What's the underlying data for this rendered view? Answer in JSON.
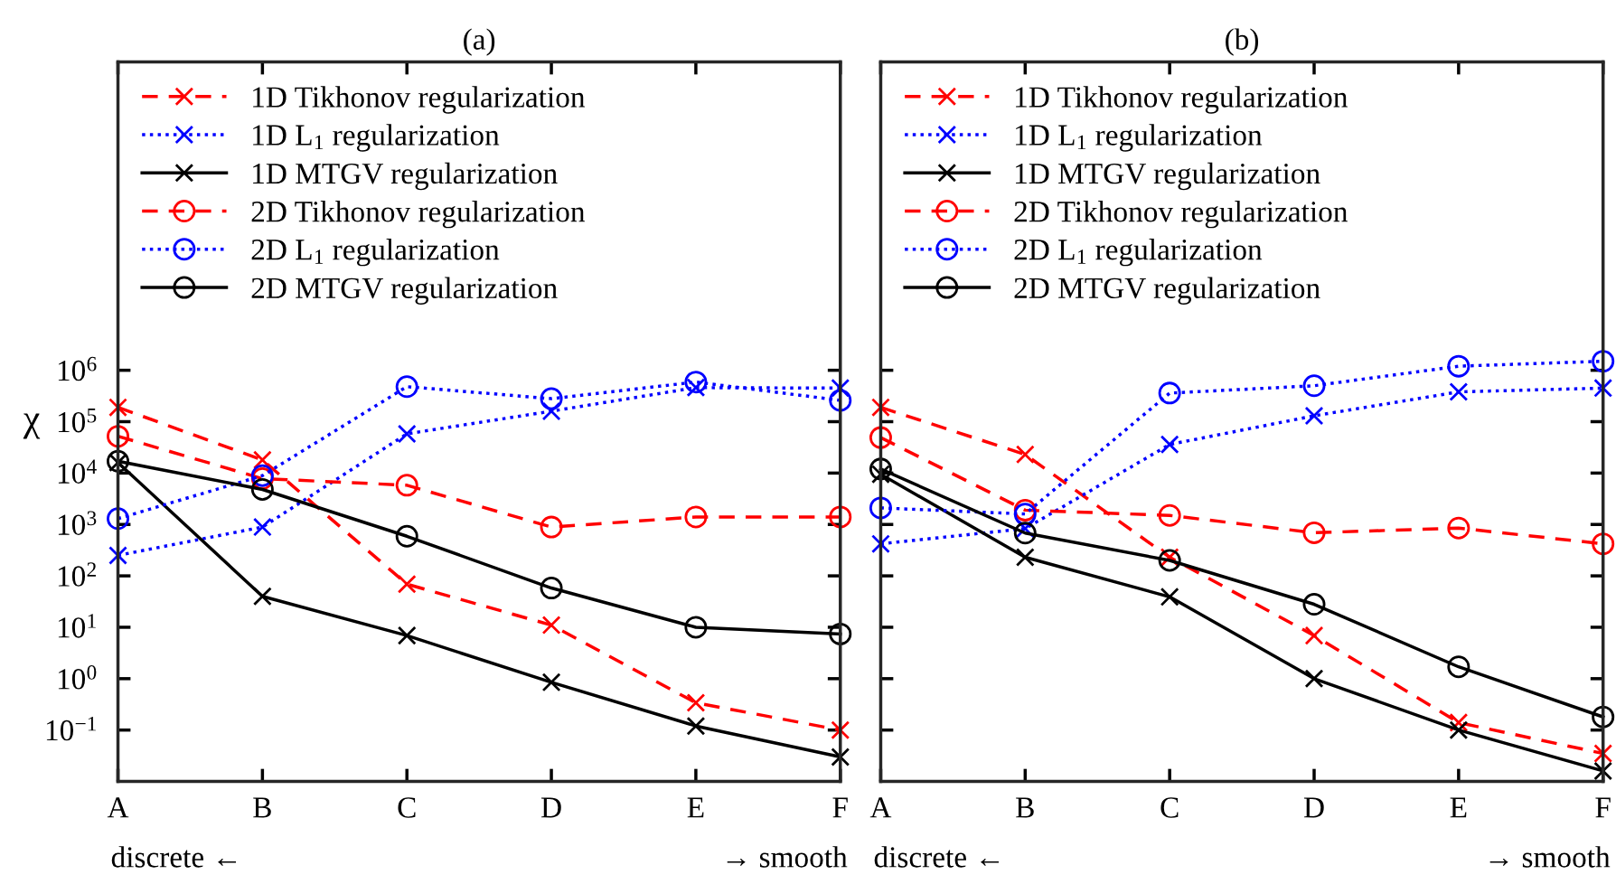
{
  "chart_data": [
    {
      "type": "line",
      "title": "(a)",
      "ylabel": "χ",
      "categories": [
        "A",
        "B",
        "C",
        "D",
        "E",
        "F"
      ],
      "log": "y",
      "ylim": [
        0.01,
        1000000000000
      ],
      "yticks": [
        {
          "value": 0.1,
          "label": "10$^{−1}$"
        },
        {
          "value": 1,
          "label": "10$^{0}$"
        },
        {
          "value": 10,
          "label": "10$^{1}$"
        },
        {
          "value": 100,
          "label": "10$^{2}$"
        },
        {
          "value": 1000,
          "label": "10$^{3}$"
        },
        {
          "value": 10000,
          "label": "10$^{4}$"
        },
        {
          "value": 100000,
          "label": "10$^{5}$"
        },
        {
          "value": 1000000,
          "label": "10$^{6}$"
        }
      ],
      "grid": false,
      "legend": "top left",
      "annotations": [
        "discrete ←",
        "→ smooth"
      ],
      "series": [
        {
          "name": "1D Tikhonov regularization",
          "color": "#ff0000",
          "marker": "cross",
          "line_style": "dashed",
          "values": [
            190000,
            18000,
            69,
            11,
            0.34,
            0.1
          ]
        },
        {
          "name": "1D L$_{1}$ regularization",
          "color": "#0000ff",
          "marker": "cross",
          "line_style": "dotted",
          "values": [
            250,
            890,
            58000,
            160000,
            460000,
            450000
          ]
        },
        {
          "name": "1D MTGV regularization",
          "color": "#000000",
          "marker": "cross",
          "line_style": "solid",
          "values": [
            16000,
            40,
            6.9,
            0.85,
            0.12,
            0.03
          ]
        },
        {
          "name": "2D Tikhonov regularization",
          "color": "#ff0000",
          "marker": "circle",
          "line_style": "dashed",
          "values": [
            52000,
            7800,
            5800,
            890,
            1400,
            1400
          ]
        },
        {
          "name": "2D L$_{1}$ regularization",
          "color": "#0000ff",
          "marker": "circle",
          "line_style": "dotted",
          "values": [
            1300,
            8900,
            480000,
            280000,
            590000,
            260000
          ]
        },
        {
          "name": "2D MTGV regularization",
          "color": "#000000",
          "marker": "circle",
          "line_style": "solid",
          "values": [
            17000,
            4800,
            590,
            58,
            10,
            7.4
          ]
        }
      ]
    },
    {
      "type": "line",
      "title": "(b)",
      "categories": [
        "A",
        "B",
        "C",
        "D",
        "E",
        "F"
      ],
      "log": "y",
      "ylim": [
        0.01,
        1000000000000
      ],
      "yticks": [
        {
          "value": 0.1,
          "label": null
        },
        {
          "value": 1,
          "label": null
        },
        {
          "value": 10,
          "label": null
        },
        {
          "value": 100,
          "label": null
        },
        {
          "value": 1000,
          "label": null
        },
        {
          "value": 10000,
          "label": null
        },
        {
          "value": 100000,
          "label": null
        },
        {
          "value": 1000000,
          "label": null
        }
      ],
      "tick_labels": "x",
      "grid": false,
      "legend": "top left",
      "annotations": [
        "discrete ←",
        "→ smooth"
      ],
      "series": [
        {
          "name": "1D Tikhonov regularization",
          "color": "#ff0000",
          "marker": "cross",
          "line_style": "dashed",
          "values": [
            190000,
            23000,
            230,
            6.9,
            0.14,
            0.035
          ]
        },
        {
          "name": "1D L$_{1}$ regularization",
          "color": "#0000ff",
          "marker": "cross",
          "line_style": "dotted",
          "values": [
            420,
            830,
            36000,
            130000,
            380000,
            450000
          ]
        },
        {
          "name": "1D MTGV regularization",
          "color": "#000000",
          "marker": "cross",
          "line_style": "solid",
          "values": [
            9500,
            230,
            39,
            1.0,
            0.1,
            0.016
          ]
        },
        {
          "name": "2D Tikhonov regularization",
          "color": "#ff0000",
          "marker": "circle",
          "line_style": "dashed",
          "values": [
            49000,
            1900,
            1500,
            690,
            850,
            420
          ]
        },
        {
          "name": "2D L$_{1}$ regularization",
          "color": "#0000ff",
          "marker": "circle",
          "line_style": "dotted",
          "values": [
            2100,
            1600,
            360000,
            500000,
            1200000,
            1500000
          ]
        },
        {
          "name": "2D MTGV regularization",
          "color": "#000000",
          "marker": "circle",
          "line_style": "solid",
          "values": [
            12000,
            680,
            200,
            28,
            1.7,
            0.18
          ]
        }
      ]
    }
  ]
}
